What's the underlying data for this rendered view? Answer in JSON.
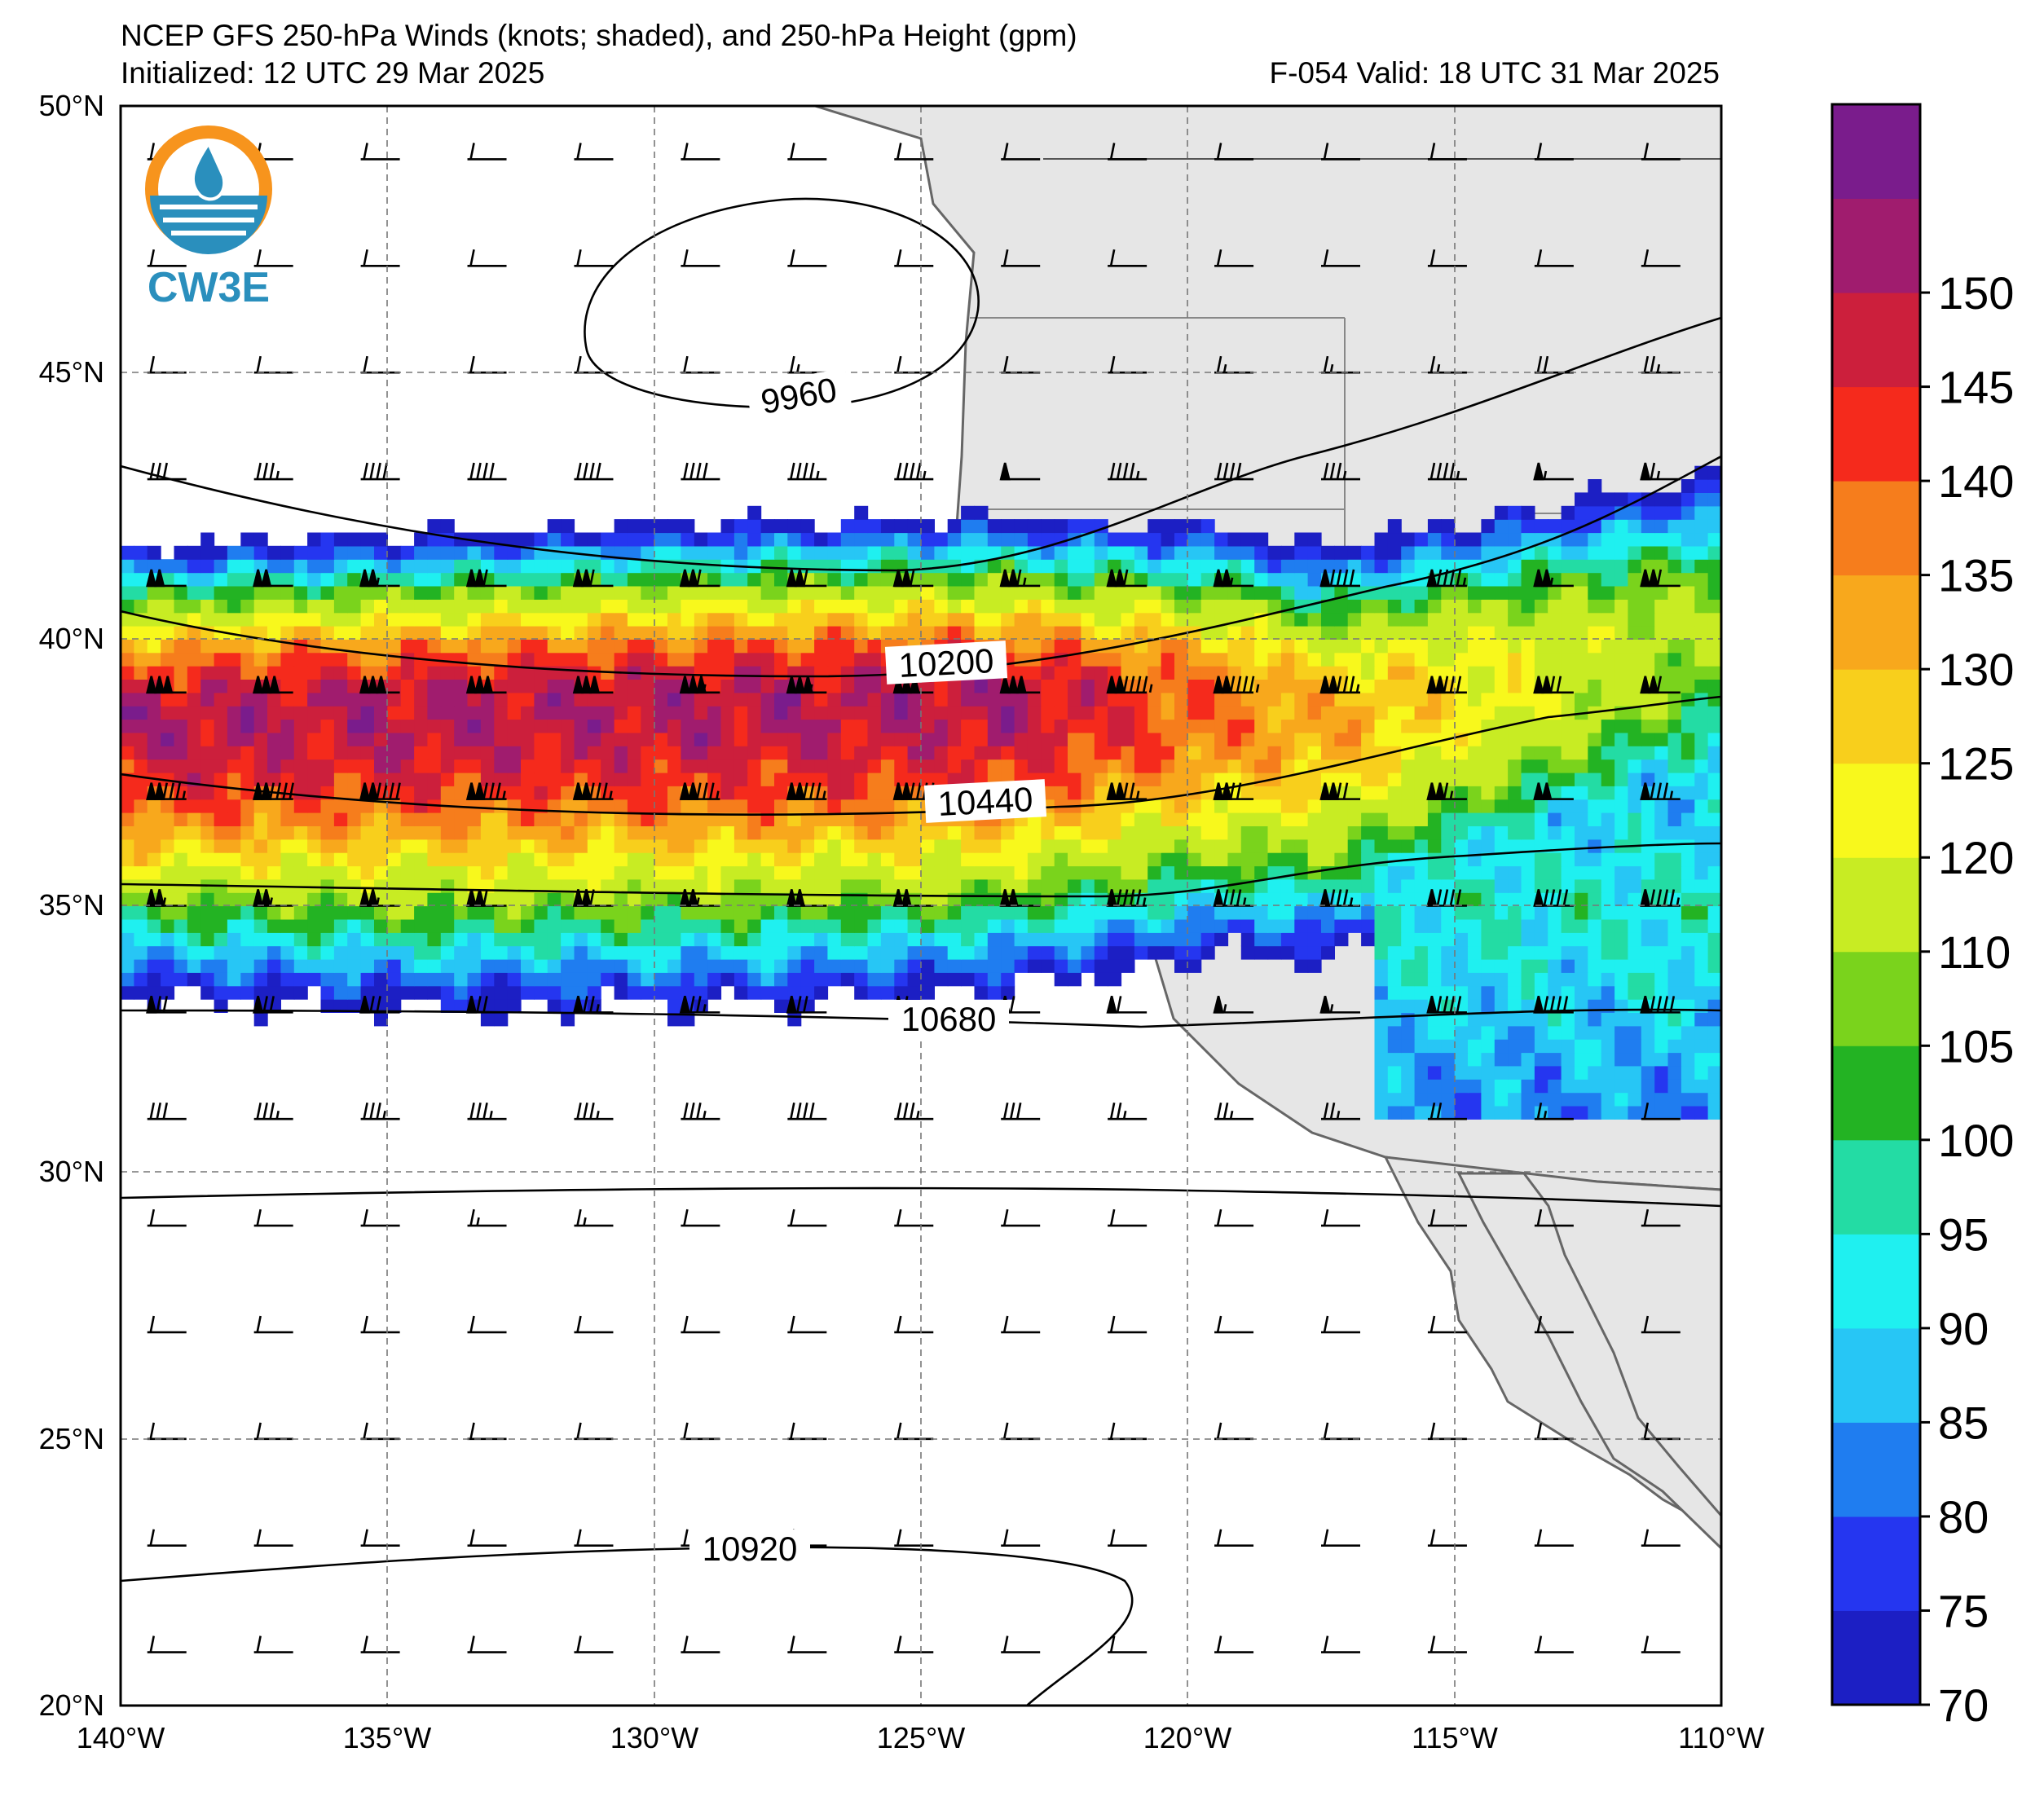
{
  "header": {
    "title": "NCEP GFS 250-hPa Winds (knots; shaded), and 250-hPa Height (gpm)",
    "init": "Initialized: 12 UTC 29 Mar 2025",
    "valid": "F-054  Valid: 18 UTC 31 Mar 2025"
  },
  "logo": {
    "text": "CW3E",
    "colors": {
      "ring": "#f7941d",
      "drop": "#2a8fbd",
      "text": "#2a8fbd"
    }
  },
  "map": {
    "lon_range": [
      -140,
      -110
    ],
    "lat_range": [
      20,
      50
    ],
    "lon_labels": [
      "140°W",
      "135°W",
      "130°W",
      "125°W",
      "120°W",
      "115°W",
      "110°W"
    ],
    "lat_labels": [
      "50°N",
      "45°N",
      "40°N",
      "35°N",
      "30°N",
      "25°N",
      "20°N"
    ],
    "land_color": "#e6e6e6",
    "contour_labels": [
      "9960",
      "10200",
      "10440",
      "10680",
      "10920"
    ]
  },
  "colorbar": {
    "levels": [
      70,
      75,
      80,
      85,
      90,
      95,
      100,
      105,
      110,
      120,
      125,
      130,
      135,
      140,
      145,
      150
    ],
    "labels": [
      "70",
      "75",
      "80",
      "85",
      "90",
      "95",
      "100",
      "105",
      "110",
      "120",
      "125",
      "130",
      "135",
      "140",
      "145",
      "150"
    ],
    "colors": [
      "#1c1fc4",
      "#2536f0",
      "#1f7df0",
      "#27c6f5",
      "#1ff0f0",
      "#23dca4",
      "#23b323",
      "#7ad31c",
      "#c8ec23",
      "#f8f81c",
      "#f8cf1c",
      "#f8a81c",
      "#f67d1c",
      "#f52a1c",
      "#cc1f3c",
      "#a01c6e",
      "#7a1c8c"
    ]
  },
  "chart_data": {
    "type": "heatmap",
    "description_units": "knots",
    "jet_core_lat": 38.3,
    "jet_core_max_kt": 150,
    "height_contours_gpm": [
      9960,
      10200,
      10440,
      10680,
      10920
    ]
  }
}
